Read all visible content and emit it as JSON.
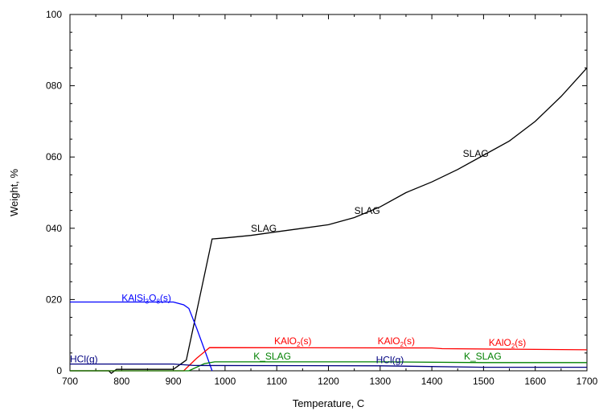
{
  "chart_data": {
    "type": "line",
    "title": "",
    "xlabel": "Temperature, C",
    "ylabel": "Weight, %",
    "xlim": [
      700,
      1700
    ],
    "ylim": [
      0,
      100
    ],
    "x_ticks": [
      700,
      800,
      900,
      1000,
      1100,
      1200,
      1300,
      1400,
      1500,
      1600,
      1700
    ],
    "y_ticks": [
      {
        "value": 0,
        "label": "0"
      },
      {
        "value": 20,
        "label": "020"
      },
      {
        "value": 40,
        "label": "040"
      },
      {
        "value": 60,
        "label": "060"
      },
      {
        "value": 80,
        "label": "080"
      },
      {
        "value": 100,
        "label": "100"
      }
    ],
    "grid": false,
    "series": [
      {
        "key": "slag",
        "color": "#000000",
        "points": [
          [
            700,
            0
          ],
          [
            775,
            0
          ],
          [
            780,
            -0.7
          ],
          [
            790,
            0.4
          ],
          [
            900,
            0.4
          ],
          [
            925,
            3
          ],
          [
            950,
            20
          ],
          [
            975,
            37
          ],
          [
            1000,
            37.3
          ],
          [
            1050,
            38
          ],
          [
            1100,
            39
          ],
          [
            1150,
            40
          ],
          [
            1200,
            41
          ],
          [
            1250,
            43
          ],
          [
            1300,
            46
          ],
          [
            1350,
            50
          ],
          [
            1400,
            53
          ],
          [
            1450,
            56.5
          ],
          [
            1500,
            60.5
          ],
          [
            1550,
            64.5
          ],
          [
            1600,
            70
          ],
          [
            1650,
            77
          ],
          [
            1700,
            85
          ]
        ],
        "labels": [
          {
            "text": "SLAG",
            "x": 1050,
            "y": 39
          },
          {
            "text": "SLAG",
            "x": 1250,
            "y": 44
          },
          {
            "text": "SLAG",
            "x": 1460,
            "y": 60
          }
        ]
      },
      {
        "key": "kalsi3o8",
        "color": "#0000ff",
        "points": [
          [
            700,
            19.3
          ],
          [
            900,
            19.3
          ],
          [
            920,
            18.5
          ],
          [
            930,
            17.5
          ],
          [
            945,
            12
          ],
          [
            960,
            6
          ],
          [
            975,
            0
          ]
        ],
        "labels": [
          {
            "text": "KAlSi",
            "sub": "3",
            "text2": "O",
            "sub2": "8",
            "text3": "(s)",
            "x": 800,
            "y": 19.5
          }
        ]
      },
      {
        "key": "kalo2",
        "color": "#ff0000",
        "points": [
          [
            700,
            0
          ],
          [
            920,
            0
          ],
          [
            945,
            3.5
          ],
          [
            970,
            6.5
          ],
          [
            1400,
            6.4
          ],
          [
            1420,
            6.2
          ],
          [
            1600,
            6
          ],
          [
            1700,
            5.9
          ]
        ],
        "labels": [
          {
            "text": "KAlO",
            "sub": "2",
            "text2": "(s)",
            "x": 1095,
            "y": 7.4
          },
          {
            "text": "KAlO",
            "sub": "2",
            "text2": "(s)",
            "x": 1295,
            "y": 7.4
          },
          {
            "text": "KAlO",
            "sub": "2",
            "text2": "(s)",
            "x": 1510,
            "y": 7.0
          }
        ]
      },
      {
        "key": "k_slag",
        "color": "#008000",
        "points": [
          [
            700,
            0
          ],
          [
            930,
            0
          ],
          [
            960,
            2
          ],
          [
            980,
            2.5
          ],
          [
            1300,
            2.5
          ],
          [
            1500,
            2.3
          ],
          [
            1700,
            2.3
          ]
        ],
        "labels": [
          {
            "text": "K_SLAG",
            "x": 1055,
            "y": 3.2
          },
          {
            "text": "K_SLAG",
            "x": 1462,
            "y": 3.2
          }
        ]
      },
      {
        "key": "hcl",
        "color": "#000080",
        "points": [
          [
            700,
            1.9
          ],
          [
            900,
            1.9
          ],
          [
            920,
            1.7
          ],
          [
            940,
            1.5
          ],
          [
            1300,
            1.4
          ],
          [
            1500,
            1.0
          ],
          [
            1700,
            1.0
          ]
        ],
        "labels": [
          {
            "text": "HCl(g)",
            "x": 700,
            "y": 2.4
          },
          {
            "text": "HCl(g)",
            "x": 1292,
            "y": 2.2
          }
        ]
      }
    ]
  }
}
